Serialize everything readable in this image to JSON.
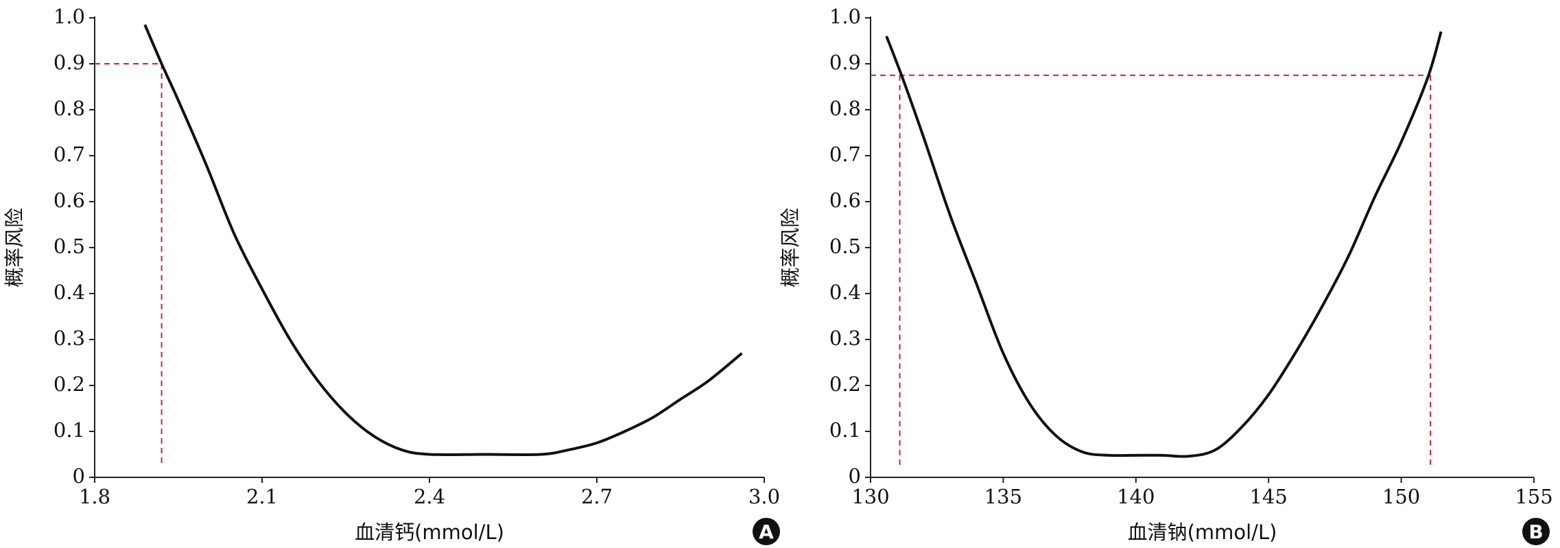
{
  "chart_data": [
    {
      "type": "line",
      "panel_label": "A",
      "x_label": "血清钙(mmol/L)",
      "y_label": "概率风险",
      "color": "#111111",
      "x": [
        1.89,
        1.92,
        1.95,
        2.0,
        2.05,
        2.1,
        2.15,
        2.2,
        2.25,
        2.3,
        2.35,
        2.4,
        2.5,
        2.6,
        2.65,
        2.7,
        2.75,
        2.8,
        2.85,
        2.9,
        2.96
      ],
      "values": [
        0.985,
        0.9,
        0.82,
        0.68,
        0.53,
        0.41,
        0.3,
        0.21,
        0.14,
        0.09,
        0.06,
        0.05,
        0.05,
        0.05,
        0.06,
        0.075,
        0.1,
        0.13,
        0.17,
        0.21,
        0.27
      ],
      "xlim": [
        1.8,
        3.0
      ],
      "xticks": [
        1.8,
        2.1,
        2.4,
        2.7,
        {
          "value": 3.0,
          "label": "3.0"
        }
      ],
      "ylim": [
        0,
        1.0
      ],
      "yticks": [
        0,
        0.1,
        0.2,
        0.3,
        0.4,
        0.5,
        0.6,
        0.7,
        0.8,
        0.9,
        {
          "value": 1.0,
          "label": "1.0"
        }
      ],
      "ref_x": [
        1.92
      ],
      "ref_y": 0.9,
      "ref_color": "#c0282d"
    },
    {
      "type": "line",
      "panel_label": "B",
      "x_label": "血清钠(mmol/L)",
      "y_label": "概率风险",
      "color": "#111111",
      "x": [
        130.6,
        131.2,
        132,
        133,
        134,
        135,
        136,
        137,
        138,
        139,
        140,
        141,
        142,
        143,
        144,
        145,
        146,
        147,
        148,
        149,
        150,
        151,
        151.5
      ],
      "values": [
        0.96,
        0.87,
        0.74,
        0.57,
        0.42,
        0.27,
        0.16,
        0.09,
        0.055,
        0.048,
        0.048,
        0.048,
        0.046,
        0.06,
        0.11,
        0.18,
        0.27,
        0.37,
        0.48,
        0.61,
        0.73,
        0.87,
        0.97
      ],
      "xlim": [
        130,
        155
      ],
      "xticks": [
        130,
        135,
        140,
        145,
        150,
        155
      ],
      "ylim": [
        0,
        1.0
      ],
      "yticks": [
        0,
        0.1,
        0.2,
        0.3,
        0.4,
        0.5,
        0.6,
        0.7,
        0.8,
        0.9,
        {
          "value": 1.0,
          "label": "1.0"
        }
      ],
      "ref_x": [
        131.1,
        151.1
      ],
      "ref_y": 0.875,
      "ref_color": "#c0282d"
    }
  ]
}
